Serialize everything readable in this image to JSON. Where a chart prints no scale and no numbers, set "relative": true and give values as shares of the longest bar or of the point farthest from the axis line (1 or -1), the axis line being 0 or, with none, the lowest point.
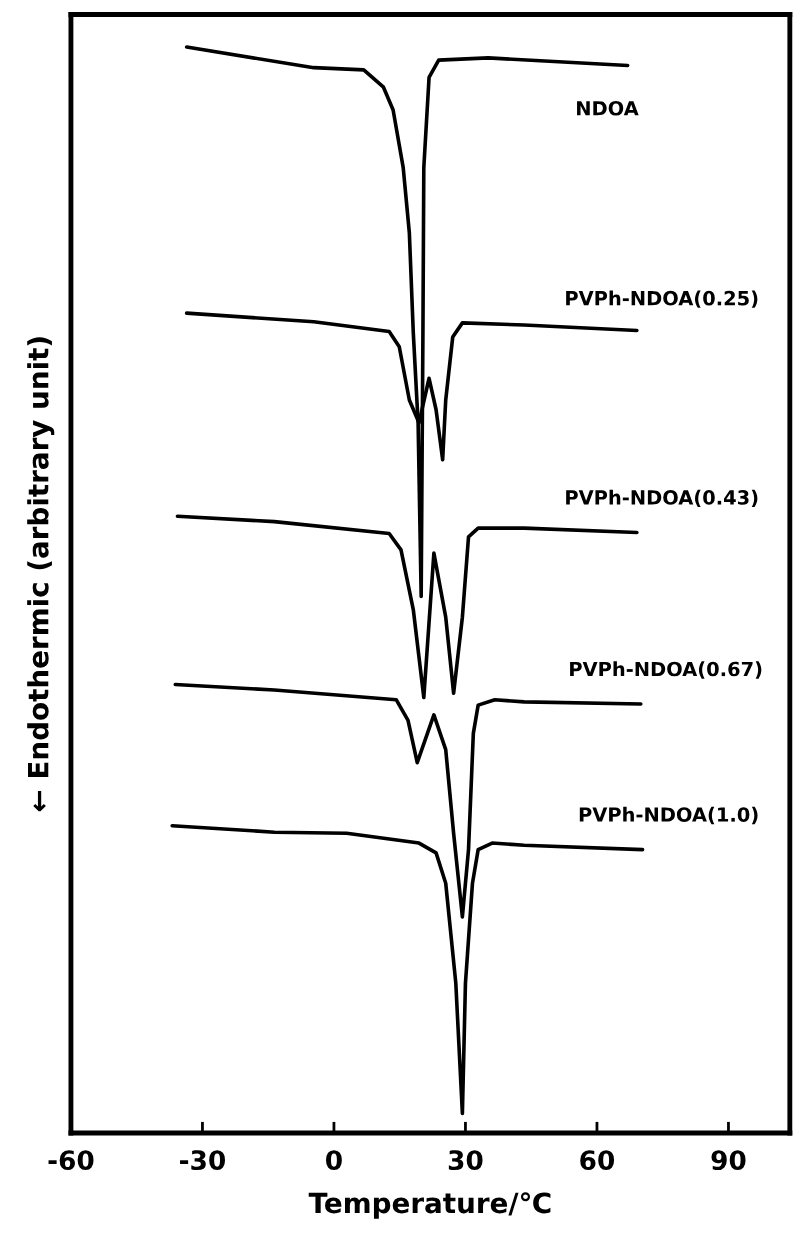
{
  "chart_data": {
    "type": "line",
    "relative": true,
    "xlabel": "Temperature/℃",
    "ylabel": "← Endothermic (arbitrary unit)",
    "xlim": [
      -60,
      104
    ],
    "xticks": [
      -60,
      -30,
      0,
      30,
      60,
      90
    ],
    "tick_labels": "x",
    "grid": false,
    "legend": false,
    "marker": "none",
    "line_style": "solid",
    "series": [
      {
        "name": "NDOA",
        "color": "#000000",
        "x": [
          -33.6,
          -4.6,
          6.8,
          11.3,
          13.5,
          15.8,
          17.2,
          18.1,
          19.2,
          19.9,
          20.3,
          20.5,
          21.7,
          23.9,
          35.2,
          67.0
        ],
        "values": [
          1.0,
          0.981,
          0.979,
          0.963,
          0.942,
          0.889,
          0.829,
          0.737,
          0.654,
          0.494,
          0.737,
          0.889,
          0.972,
          0.988,
          0.99,
          0.983
        ]
      },
      {
        "name": "PVPh-NDOA(0.25)",
        "color": "#000000",
        "x": [
          -33.6,
          -4.6,
          12.6,
          14.9,
          17.2,
          19.4,
          21.7,
          23.3,
          24.8,
          25.5,
          27.1,
          29.3,
          43.4,
          69.1
        ],
        "values": [
          0.755,
          0.747,
          0.738,
          0.724,
          0.675,
          0.654,
          0.695,
          0.666,
          0.62,
          0.675,
          0.733,
          0.746,
          0.744,
          0.739
        ]
      },
      {
        "name": "PVPh-NDOA(0.43)",
        "color": "#000000",
        "x": [
          -35.7,
          -13.6,
          12.6,
          15.3,
          18.1,
          20.5,
          22.8,
          25.5,
          27.3,
          29.3,
          30.7,
          32.9,
          43.4,
          69.1
        ],
        "values": [
          0.568,
          0.563,
          0.552,
          0.537,
          0.482,
          0.401,
          0.534,
          0.475,
          0.405,
          0.475,
          0.549,
          0.557,
          0.557,
          0.553
        ]
      },
      {
        "name": "PVPh-NDOA(0.67)",
        "color": "#000000",
        "x": [
          -36.2,
          -13.6,
          14.2,
          16.9,
          19.0,
          22.8,
          25.5,
          27.3,
          29.3,
          30.7,
          31.8,
          32.9,
          36.7,
          43.4,
          70.0
        ],
        "values": [
          0.413,
          0.408,
          0.399,
          0.38,
          0.341,
          0.385,
          0.353,
          0.276,
          0.199,
          0.261,
          0.368,
          0.394,
          0.399,
          0.397,
          0.395
        ]
      },
      {
        "name": "PVPh-NDOA(1.0)",
        "color": "#000000",
        "x": [
          -36.9,
          -13.6,
          2.9,
          19.4,
          23.3,
          25.5,
          27.8,
          29.3,
          30.0,
          31.6,
          32.9,
          36.1,
          43.4,
          70.4
        ],
        "values": [
          0.283,
          0.277,
          0.276,
          0.267,
          0.258,
          0.23,
          0.138,
          0.018,
          0.138,
          0.23,
          0.261,
          0.267,
          0.265,
          0.261
        ]
      }
    ]
  }
}
